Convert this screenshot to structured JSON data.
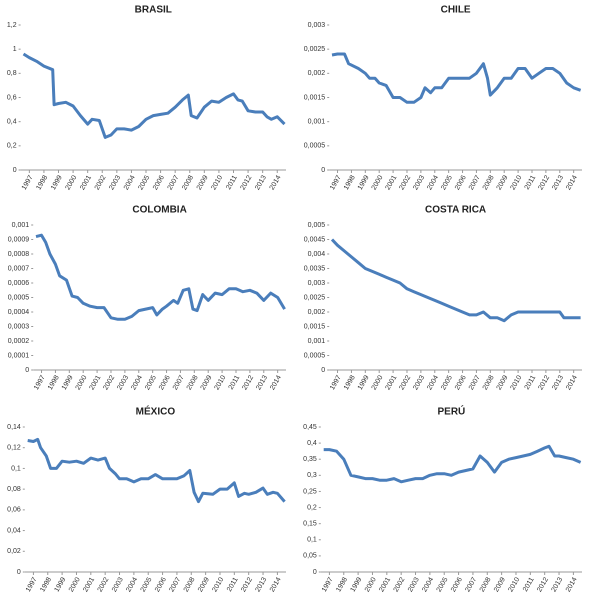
{
  "chart_data": [
    {
      "type": "line",
      "title": "BRASIL",
      "x": [
        1996.6,
        1997,
        1997.5,
        1998,
        1998.6,
        1998.7,
        1999,
        1999.5,
        2000,
        2000.5,
        2001,
        2001.3,
        2001.8,
        2002.2,
        2002.6,
        2003,
        2003.5,
        2004,
        2004.5,
        2005,
        2005.5,
        2006,
        2006.5,
        2007,
        2007.5,
        2007.9,
        2008.1,
        2008.5,
        2009,
        2009.5,
        2010,
        2010.5,
        2011,
        2011.3,
        2011.6,
        2012,
        2012.5,
        2013,
        2013.3,
        2013.6,
        2014,
        2014.5
      ],
      "values": [
        0.96,
        0.93,
        0.9,
        0.86,
        0.83,
        0.54,
        0.55,
        0.56,
        0.53,
        0.45,
        0.38,
        0.42,
        0.41,
        0.27,
        0.29,
        0.34,
        0.34,
        0.33,
        0.36,
        0.42,
        0.45,
        0.46,
        0.47,
        0.52,
        0.58,
        0.62,
        0.45,
        0.43,
        0.52,
        0.57,
        0.56,
        0.6,
        0.63,
        0.58,
        0.57,
        0.49,
        0.48,
        0.48,
        0.44,
        0.42,
        0.44,
        0.38
      ],
      "color": "#4a7ebb",
      "xlim": [
        1996.4,
        2014.6
      ],
      "ylim": [
        0,
        1.2
      ],
      "xticks": [
        1997,
        1998,
        1999,
        2000,
        2001,
        2002,
        2003,
        2004,
        2005,
        2006,
        2007,
        2008,
        2009,
        2010,
        2011,
        2012,
        2013,
        2014
      ],
      "yticks": [
        0,
        {
          "value": 0.2,
          "label": "0,2"
        },
        {
          "value": 0.4,
          "label": "0,4"
        },
        {
          "value": 0.6,
          "label": "0,6"
        },
        {
          "value": 0.8,
          "label": "0,8"
        },
        1,
        {
          "value": 1.2,
          "label": "1,2"
        }
      ]
    },
    {
      "type": "line",
      "title": "CHILE",
      "x": [
        1996.6,
        1997,
        1997.5,
        1997.8,
        1998.5,
        1999,
        1999.3,
        1999.7,
        2000,
        2000.5,
        2001,
        2001.5,
        2002,
        2002.5,
        2003,
        2003.3,
        2003.7,
        2004,
        2004.5,
        2005,
        2005.5,
        2006,
        2006.5,
        2007,
        2007.5,
        2007.8,
        2008,
        2008.5,
        2009,
        2009.5,
        2010,
        2010.5,
        2011,
        2011.5,
        2012,
        2012.5,
        2013,
        2013.5,
        2014,
        2014.5
      ],
      "values": [
        0.00238,
        0.0024,
        0.0024,
        0.0022,
        0.0021,
        0.002,
        0.0019,
        0.0019,
        0.0018,
        0.00175,
        0.0015,
        0.0015,
        0.0014,
        0.0014,
        0.0015,
        0.0017,
        0.0016,
        0.0017,
        0.0017,
        0.0019,
        0.0019,
        0.0019,
        0.0019,
        0.002,
        0.0022,
        0.0019,
        0.00155,
        0.0017,
        0.0019,
        0.0019,
        0.0021,
        0.0021,
        0.0019,
        0.002,
        0.0021,
        0.0021,
        0.002,
        0.0018,
        0.0017,
        0.00165
      ],
      "color": "#4a7ebb",
      "xlim": [
        1996.4,
        2014.6
      ],
      "ylim": [
        0,
        0.003
      ],
      "xticks": [
        1997,
        1998,
        1999,
        2000,
        2001,
        2002,
        2003,
        2004,
        2005,
        2006,
        2007,
        2008,
        2009,
        2010,
        2011,
        2012,
        2013,
        2014
      ],
      "yticks": [
        0,
        {
          "value": 0.0005,
          "label": "0,0005"
        },
        {
          "value": 0.001,
          "label": "0,001"
        },
        {
          "value": 0.0015,
          "label": "0,0015"
        },
        {
          "value": 0.002,
          "label": "0,002"
        },
        {
          "value": 0.0025,
          "label": "0,0025"
        },
        {
          "value": 0.003,
          "label": "0,003"
        }
      ]
    },
    {
      "type": "line",
      "title": "COLOMBIA",
      "x": [
        1996.6,
        1997,
        1997.3,
        1997.6,
        1998,
        1998.3,
        1998.8,
        1999.2,
        1999.6,
        2000,
        2000.5,
        2001,
        2001.5,
        2002,
        2002.5,
        2003,
        2003.5,
        2004,
        2004.5,
        2005,
        2005.3,
        2005.7,
        2006,
        2006.5,
        2006.8,
        2007.2,
        2007.6,
        2007.9,
        2008.2,
        2008.6,
        2009,
        2009.5,
        2010,
        2010.5,
        2011,
        2011.5,
        2012,
        2012.5,
        2013,
        2013.5,
        2014,
        2014.5
      ],
      "values": [
        0.00092,
        0.00093,
        0.00088,
        0.0008,
        0.00073,
        0.00065,
        0.00062,
        0.00051,
        0.0005,
        0.00046,
        0.00044,
        0.00043,
        0.00043,
        0.00036,
        0.00035,
        0.00035,
        0.00037,
        0.00041,
        0.00042,
        0.00043,
        0.00038,
        0.00042,
        0.00044,
        0.00048,
        0.00046,
        0.00055,
        0.00056,
        0.00042,
        0.00041,
        0.00052,
        0.00048,
        0.00053,
        0.00052,
        0.00056,
        0.00056,
        0.00054,
        0.00055,
        0.00053,
        0.00048,
        0.00053,
        0.0005,
        0.00042
      ],
      "color": "#4a7ebb",
      "xlim": [
        1996.4,
        2014.6
      ],
      "ylim": [
        0,
        0.001
      ],
      "xticks": [
        1997,
        1998,
        1999,
        2000,
        2001,
        2002,
        2003,
        2004,
        2005,
        2006,
        2007,
        2008,
        2009,
        2010,
        2011,
        2012,
        2013,
        2014
      ],
      "yticks": [
        0,
        {
          "value": 0.0001,
          "label": "0,0001"
        },
        {
          "value": 0.0002,
          "label": "0,0002"
        },
        {
          "value": 0.0003,
          "label": "0,0003"
        },
        {
          "value": 0.0004,
          "label": "0,0004"
        },
        {
          "value": 0.0005,
          "label": "0,0005"
        },
        {
          "value": 0.0006,
          "label": "0,0006"
        },
        {
          "value": 0.0007,
          "label": "0,0007"
        },
        {
          "value": 0.0008,
          "label": "0,0008"
        },
        {
          "value": 0.0009,
          "label": "0,0009"
        },
        {
          "value": 0.001,
          "label": "0,001"
        }
      ]
    },
    {
      "type": "line",
      "title": "COSTA RICA",
      "x": [
        1996.6,
        1997,
        1997.5,
        1998,
        1998.5,
        1999,
        1999.5,
        2000,
        2000.5,
        2001,
        2001.5,
        2002,
        2002.5,
        2003,
        2003.5,
        2004,
        2004.5,
        2005,
        2005.5,
        2006,
        2006.5,
        2007,
        2007.5,
        2008,
        2008.5,
        2009,
        2009.5,
        2010,
        2010.5,
        2011,
        2011.5,
        2012,
        2012.5,
        2013,
        2013.3,
        2014,
        2014.5
      ],
      "values": [
        0.0045,
        0.0043,
        0.0041,
        0.0039,
        0.0037,
        0.0035,
        0.0034,
        0.0033,
        0.0032,
        0.0031,
        0.003,
        0.0028,
        0.0027,
        0.0026,
        0.0025,
        0.0024,
        0.0023,
        0.0022,
        0.0021,
        0.002,
        0.0019,
        0.0019,
        0.002,
        0.0018,
        0.0018,
        0.0017,
        0.0019,
        0.002,
        0.002,
        0.002,
        0.002,
        0.002,
        0.002,
        0.002,
        0.0018,
        0.0018,
        0.0018
      ],
      "color": "#4a7ebb",
      "xlim": [
        1996.4,
        2014.6
      ],
      "ylim": [
        0,
        0.005
      ],
      "xticks": [
        1997,
        1998,
        1999,
        2000,
        2001,
        2002,
        2003,
        2004,
        2005,
        2006,
        2007,
        2008,
        2009,
        2010,
        2011,
        2012,
        2013,
        2014
      ],
      "yticks": [
        0,
        {
          "value": 0.0005,
          "label": "0,0005"
        },
        {
          "value": 0.001,
          "label": "0,001"
        },
        {
          "value": 0.0015,
          "label": "0,0015"
        },
        {
          "value": 0.002,
          "label": "0,002"
        },
        {
          "value": 0.0025,
          "label": "0,0025"
        },
        {
          "value": 0.003,
          "label": "0,003"
        },
        {
          "value": 0.0035,
          "label": "0,0035"
        },
        {
          "value": 0.004,
          "label": "0,004"
        },
        {
          "value": 0.0045,
          "label": "0,0045"
        },
        {
          "value": 0.005,
          "label": "0,005"
        }
      ]
    },
    {
      "type": "line",
      "title": "MÉXICO",
      "x": [
        1996.6,
        1997,
        1997.3,
        1997.5,
        1997.9,
        1998.2,
        1998.6,
        1999,
        1999.5,
        2000,
        2000.5,
        2001,
        2001.5,
        2002,
        2002.3,
        2002.7,
        2003,
        2003.5,
        2004,
        2004.5,
        2005,
        2005.5,
        2006,
        2006.5,
        2007,
        2007.5,
        2007.9,
        2008.2,
        2008.5,
        2008.8,
        2009.5,
        2010,
        2010.5,
        2011,
        2011.3,
        2011.7,
        2012,
        2012.5,
        2013,
        2013.3,
        2013.7,
        2014,
        2014.5
      ],
      "values": [
        0.127,
        0.126,
        0.128,
        0.12,
        0.112,
        0.1,
        0.1,
        0.107,
        0.106,
        0.107,
        0.105,
        0.11,
        0.108,
        0.11,
        0.1,
        0.095,
        0.09,
        0.09,
        0.087,
        0.09,
        0.09,
        0.094,
        0.09,
        0.09,
        0.09,
        0.093,
        0.098,
        0.077,
        0.068,
        0.076,
        0.075,
        0.08,
        0.08,
        0.086,
        0.073,
        0.076,
        0.075,
        0.077,
        0.081,
        0.075,
        0.077,
        0.076,
        0.068
      ],
      "color": "#4a7ebb",
      "xlim": [
        1996.4,
        2014.6
      ],
      "ylim": [
        0,
        0.14
      ],
      "xticks": [
        1997,
        1998,
        1999,
        2000,
        2001,
        2002,
        2003,
        2004,
        2005,
        2006,
        2007,
        2008,
        2009,
        2010,
        2011,
        2012,
        2013,
        2014
      ],
      "yticks": [
        0,
        {
          "value": 0.02,
          "label": "0,02"
        },
        {
          "value": 0.04,
          "label": "0,04"
        },
        {
          "value": 0.06,
          "label": "0,06"
        },
        {
          "value": 0.08,
          "label": "0,08"
        },
        {
          "value": 0.1,
          "label": "0,1"
        },
        {
          "value": 0.12,
          "label": "0,12"
        },
        {
          "value": 0.14,
          "label": "0,14"
        }
      ]
    },
    {
      "type": "line",
      "title": "PERÚ",
      "x": [
        1996.6,
        1997,
        1997.5,
        1998,
        1998.5,
        1999,
        1999.5,
        2000,
        2000.5,
        2001,
        2001.5,
        2002,
        2002.5,
        2003,
        2003.5,
        2004,
        2004.5,
        2005,
        2005.5,
        2006,
        2006.5,
        2007,
        2007.5,
        2008,
        2008.5,
        2009,
        2009.5,
        2010,
        2010.5,
        2011,
        2011.5,
        2012,
        2012.3,
        2012.7,
        2013,
        2013.5,
        2014,
        2014.5
      ],
      "values": [
        0.38,
        0.38,
        0.375,
        0.35,
        0.3,
        0.295,
        0.29,
        0.29,
        0.285,
        0.285,
        0.29,
        0.28,
        0.285,
        0.29,
        0.29,
        0.3,
        0.305,
        0.305,
        0.3,
        0.31,
        0.315,
        0.32,
        0.36,
        0.34,
        0.31,
        0.34,
        0.35,
        0.355,
        0.36,
        0.365,
        0.375,
        0.385,
        0.39,
        0.36,
        0.36,
        0.355,
        0.35,
        0.34
      ],
      "color": "#4a7ebb",
      "xlim": [
        1996.4,
        2014.6
      ],
      "ylim": [
        0,
        0.45
      ],
      "xticks": [
        1997,
        1998,
        1999,
        2000,
        2001,
        2002,
        2003,
        2004,
        2005,
        2006,
        2007,
        2008,
        2009,
        2010,
        2011,
        2012,
        2013,
        2014
      ],
      "yticks": [
        0,
        {
          "value": 0.05,
          "label": "0,05"
        },
        {
          "value": 0.1,
          "label": "0,1"
        },
        {
          "value": 0.15,
          "label": "0,15"
        },
        {
          "value": 0.2,
          "label": "0,2"
        },
        {
          "value": 0.25,
          "label": "0,25"
        },
        {
          "value": 0.3,
          "label": "0,3"
        },
        {
          "value": 0.35,
          "label": "0,35"
        },
        {
          "value": 0.4,
          "label": "0,4"
        },
        {
          "value": 0.45,
          "label": "0,45"
        }
      ]
    }
  ]
}
